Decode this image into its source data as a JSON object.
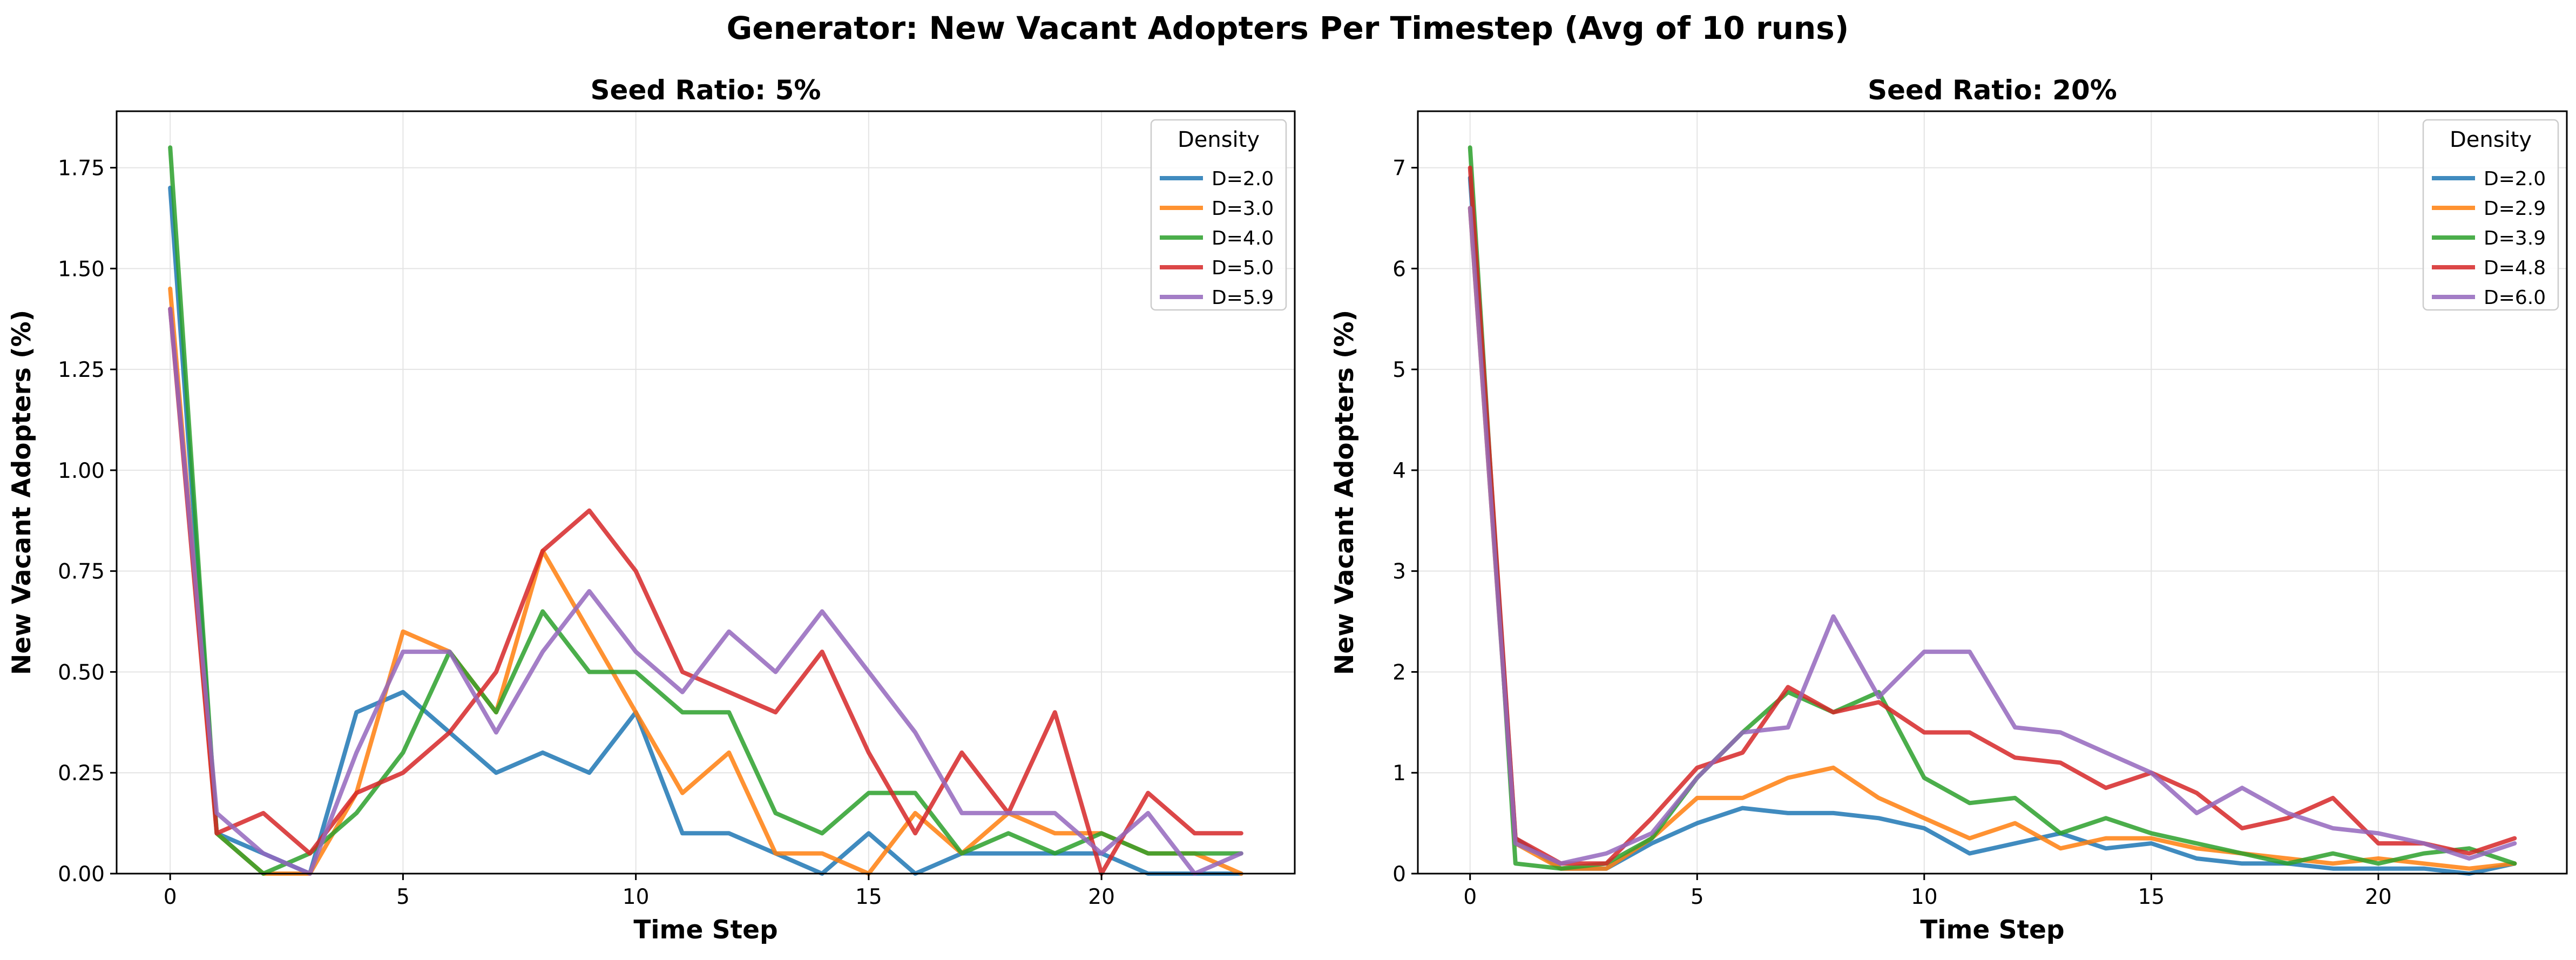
{
  "figure_title": "Generator: New Vacant Adopters Per Timestep (Avg of 10 runs)",
  "colors": [
    "#1f77b4",
    "#ff7f0e",
    "#2ca02c",
    "#d62728",
    "#9467bd"
  ],
  "chart_data": [
    {
      "type": "line",
      "title": "Seed Ratio: 5%",
      "xlabel": "Time Step",
      "ylabel": "New Vacant Adopters (%)",
      "xlim": [
        -1.15,
        24.15
      ],
      "ylim": [
        0,
        1.89
      ],
      "xticks": [
        0,
        5,
        10,
        15,
        20
      ],
      "xtick_labels": [
        "0",
        "5",
        "10",
        "15",
        "20"
      ],
      "yticks": [
        0,
        0.25,
        0.5,
        0.75,
        1.0,
        1.25,
        1.5,
        1.75
      ],
      "ytick_labels": [
        "0.00",
        "0.25",
        "0.50",
        "0.75",
        "1.00",
        "1.25",
        "1.50",
        "1.75"
      ],
      "grid": true,
      "legend_title": "Density",
      "legend_position": "upper right",
      "x": [
        0,
        1,
        2,
        3,
        4,
        5,
        6,
        7,
        8,
        9,
        10,
        11,
        12,
        13,
        14,
        15,
        16,
        17,
        18,
        19,
        20,
        21,
        22,
        23
      ],
      "series": [
        {
          "name": "D=2.0",
          "values": [
            1.7,
            0.1,
            0.05,
            0.0,
            0.4,
            0.45,
            0.35,
            0.25,
            0.3,
            0.25,
            0.4,
            0.1,
            0.1,
            0.05,
            0.0,
            0.1,
            0.0,
            0.05,
            0.05,
            0.05,
            0.05,
            0.0,
            0.0,
            0.0
          ]
        },
        {
          "name": "D=3.0",
          "values": [
            1.45,
            0.1,
            0.0,
            0.0,
            0.2,
            0.6,
            0.55,
            0.4,
            0.8,
            0.6,
            0.4,
            0.2,
            0.3,
            0.05,
            0.05,
            0.0,
            0.15,
            0.05,
            0.15,
            0.1,
            0.1,
            0.05,
            0.05,
            0.0
          ]
        },
        {
          "name": "D=4.0",
          "values": [
            1.8,
            0.1,
            0.0,
            0.05,
            0.15,
            0.3,
            0.55,
            0.4,
            0.65,
            0.5,
            0.5,
            0.4,
            0.4,
            0.15,
            0.1,
            0.2,
            0.2,
            0.05,
            0.1,
            0.05,
            0.1,
            0.05,
            0.05,
            0.05
          ]
        },
        {
          "name": "D=5.0",
          "values": [
            1.4,
            0.1,
            0.15,
            0.05,
            0.2,
            0.25,
            0.35,
            0.5,
            0.8,
            0.9,
            0.75,
            0.5,
            0.45,
            0.4,
            0.55,
            0.3,
            0.1,
            0.3,
            0.15,
            0.4,
            0.0,
            0.2,
            0.1,
            0.1
          ]
        },
        {
          "name": "D=5.9",
          "values": [
            1.4,
            0.15,
            0.05,
            0.0,
            0.3,
            0.55,
            0.55,
            0.35,
            0.55,
            0.7,
            0.55,
            0.45,
            0.6,
            0.5,
            0.65,
            0.5,
            0.35,
            0.15,
            0.15,
            0.15,
            0.05,
            0.15,
            0.0,
            0.05
          ]
        }
      ]
    },
    {
      "type": "line",
      "title": "Seed Ratio: 20%",
      "xlabel": "Time Step",
      "ylabel": "New Vacant Adopters (%)",
      "xlim": [
        -1.15,
        24.15
      ],
      "ylim": [
        0,
        7.56
      ],
      "xticks": [
        0,
        5,
        10,
        15,
        20
      ],
      "xtick_labels": [
        "0",
        "5",
        "10",
        "15",
        "20"
      ],
      "yticks": [
        0,
        1,
        2,
        3,
        4,
        5,
        6,
        7
      ],
      "ytick_labels": [
        "0",
        "1",
        "2",
        "3",
        "4",
        "5",
        "6",
        "7"
      ],
      "grid": true,
      "legend_title": "Density",
      "legend_position": "upper right",
      "x": [
        0,
        1,
        2,
        3,
        4,
        5,
        6,
        7,
        8,
        9,
        10,
        11,
        12,
        13,
        14,
        15,
        16,
        17,
        18,
        19,
        20,
        21,
        22,
        23
      ],
      "series": [
        {
          "name": "D=2.0",
          "values": [
            6.9,
            0.35,
            0.05,
            0.05,
            0.3,
            0.5,
            0.65,
            0.6,
            0.6,
            0.55,
            0.45,
            0.2,
            0.3,
            0.4,
            0.25,
            0.3,
            0.15,
            0.1,
            0.1,
            0.05,
            0.05,
            0.05,
            0.0,
            0.1
          ]
        },
        {
          "name": "D=2.9",
          "values": [
            6.6,
            0.3,
            0.05,
            0.05,
            0.35,
            0.75,
            0.75,
            0.95,
            1.05,
            0.75,
            0.55,
            0.35,
            0.5,
            0.25,
            0.35,
            0.35,
            0.25,
            0.2,
            0.15,
            0.1,
            0.15,
            0.1,
            0.05,
            0.1
          ]
        },
        {
          "name": "D=3.9",
          "values": [
            7.2,
            0.1,
            0.05,
            0.1,
            0.35,
            0.95,
            1.4,
            1.8,
            1.6,
            1.8,
            0.95,
            0.7,
            0.75,
            0.4,
            0.55,
            0.4,
            0.3,
            0.2,
            0.1,
            0.2,
            0.1,
            0.2,
            0.25,
            0.1
          ]
        },
        {
          "name": "D=4.8",
          "values": [
            7.0,
            0.35,
            0.1,
            0.1,
            0.55,
            1.05,
            1.2,
            1.85,
            1.6,
            1.7,
            1.4,
            1.4,
            1.15,
            1.1,
            0.85,
            1.0,
            0.8,
            0.45,
            0.55,
            0.75,
            0.3,
            0.3,
            0.2,
            0.35
          ]
        },
        {
          "name": "D=6.0",
          "values": [
            6.6,
            0.3,
            0.1,
            0.2,
            0.4,
            0.95,
            1.4,
            1.45,
            2.55,
            1.75,
            2.2,
            2.2,
            1.45,
            1.4,
            1.2,
            1.0,
            0.6,
            0.85,
            0.6,
            0.45,
            0.4,
            0.3,
            0.15,
            0.3
          ]
        }
      ]
    }
  ]
}
